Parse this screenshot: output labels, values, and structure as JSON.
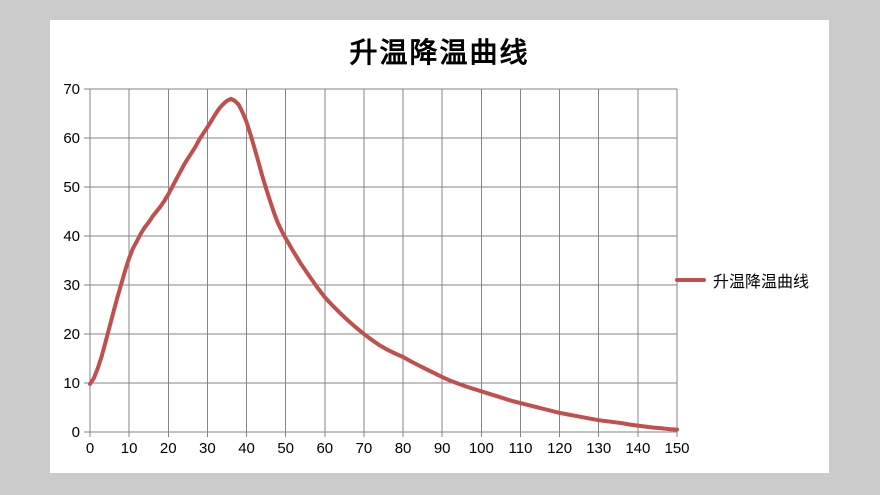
{
  "window": {
    "background_color": "#cbcbcb",
    "chart_background": "#ffffff"
  },
  "chart_data": {
    "type": "line",
    "title": "升温降温曲线",
    "xlabel": "",
    "ylabel": "",
    "xlim": [
      0,
      150
    ],
    "ylim": [
      0,
      70
    ],
    "x_ticks": [
      0,
      10,
      20,
      30,
      40,
      50,
      60,
      70,
      80,
      90,
      100,
      110,
      120,
      130,
      140,
      150
    ],
    "y_ticks": [
      0,
      10,
      20,
      30,
      40,
      50,
      60,
      70
    ],
    "grid": true,
    "legend": {
      "position": "right",
      "label": "升温降温曲线"
    },
    "colors": {
      "series": "#c0504d",
      "grid": "#868686",
      "text": "#000000"
    },
    "series": [
      {
        "name": "升温降温曲线",
        "color": "#c0504d",
        "points": [
          [
            0,
            9.8
          ],
          [
            1,
            11
          ],
          [
            2,
            13
          ],
          [
            3,
            15.5
          ],
          [
            4,
            18.5
          ],
          [
            5,
            21.5
          ],
          [
            6,
            24.5
          ],
          [
            7,
            27.5
          ],
          [
            8,
            30.2
          ],
          [
            9,
            33
          ],
          [
            10,
            35.5
          ],
          [
            11,
            37.5
          ],
          [
            12,
            39
          ],
          [
            13,
            40.5
          ],
          [
            14,
            41.8
          ],
          [
            15,
            42.8
          ],
          [
            16,
            44
          ],
          [
            17,
            45
          ],
          [
            18,
            46
          ],
          [
            19,
            47.2
          ],
          [
            20,
            48.5
          ],
          [
            21,
            50
          ],
          [
            22,
            51.5
          ],
          [
            23,
            53
          ],
          [
            24,
            54.5
          ],
          [
            25,
            55.8
          ],
          [
            26,
            57
          ],
          [
            27,
            58.3
          ],
          [
            28,
            59.8
          ],
          [
            29,
            61
          ],
          [
            30,
            62.2
          ],
          [
            31,
            63.5
          ],
          [
            32,
            64.8
          ],
          [
            33,
            66
          ],
          [
            34,
            66.9
          ],
          [
            35,
            67.6
          ],
          [
            36,
            68
          ],
          [
            37,
            67.6
          ],
          [
            38,
            66.8
          ],
          [
            39,
            65.2
          ],
          [
            40,
            63.3
          ],
          [
            41,
            60.8
          ],
          [
            42,
            58
          ],
          [
            43,
            55.2
          ],
          [
            44,
            52.3
          ],
          [
            45,
            49.7
          ],
          [
            46,
            47.2
          ],
          [
            47,
            44.8
          ],
          [
            48,
            42.7
          ],
          [
            49,
            41
          ],
          [
            50,
            39.5
          ],
          [
            52,
            36.8
          ],
          [
            54,
            34.2
          ],
          [
            56,
            31.9
          ],
          [
            58,
            29.6
          ],
          [
            60,
            27.5
          ],
          [
            62,
            25.8
          ],
          [
            64,
            24.2
          ],
          [
            66,
            22.7
          ],
          [
            68,
            21.3
          ],
          [
            70,
            20
          ],
          [
            72,
            18.8
          ],
          [
            74,
            17.7
          ],
          [
            76,
            16.8
          ],
          [
            78,
            16
          ],
          [
            80,
            15.3
          ],
          [
            82,
            14.4
          ],
          [
            84,
            13.6
          ],
          [
            86,
            12.8
          ],
          [
            88,
            12
          ],
          [
            90,
            11.2
          ],
          [
            92,
            10.5
          ],
          [
            94,
            9.9
          ],
          [
            96,
            9.3
          ],
          [
            98,
            8.8
          ],
          [
            100,
            8.3
          ],
          [
            102,
            7.8
          ],
          [
            104,
            7.3
          ],
          [
            106,
            6.8
          ],
          [
            108,
            6.3
          ],
          [
            110,
            5.9
          ],
          [
            112,
            5.5
          ],
          [
            114,
            5.1
          ],
          [
            116,
            4.7
          ],
          [
            118,
            4.3
          ],
          [
            120,
            3.9
          ],
          [
            122,
            3.6
          ],
          [
            124,
            3.3
          ],
          [
            126,
            3.0
          ],
          [
            128,
            2.7
          ],
          [
            130,
            2.4
          ],
          [
            132,
            2.2
          ],
          [
            134,
            2.0
          ],
          [
            136,
            1.8
          ],
          [
            138,
            1.5
          ],
          [
            140,
            1.3
          ],
          [
            142,
            1.1
          ],
          [
            144,
            0.9
          ],
          [
            146,
            0.75
          ],
          [
            148,
            0.6
          ],
          [
            150,
            0.5
          ]
        ]
      }
    ]
  }
}
